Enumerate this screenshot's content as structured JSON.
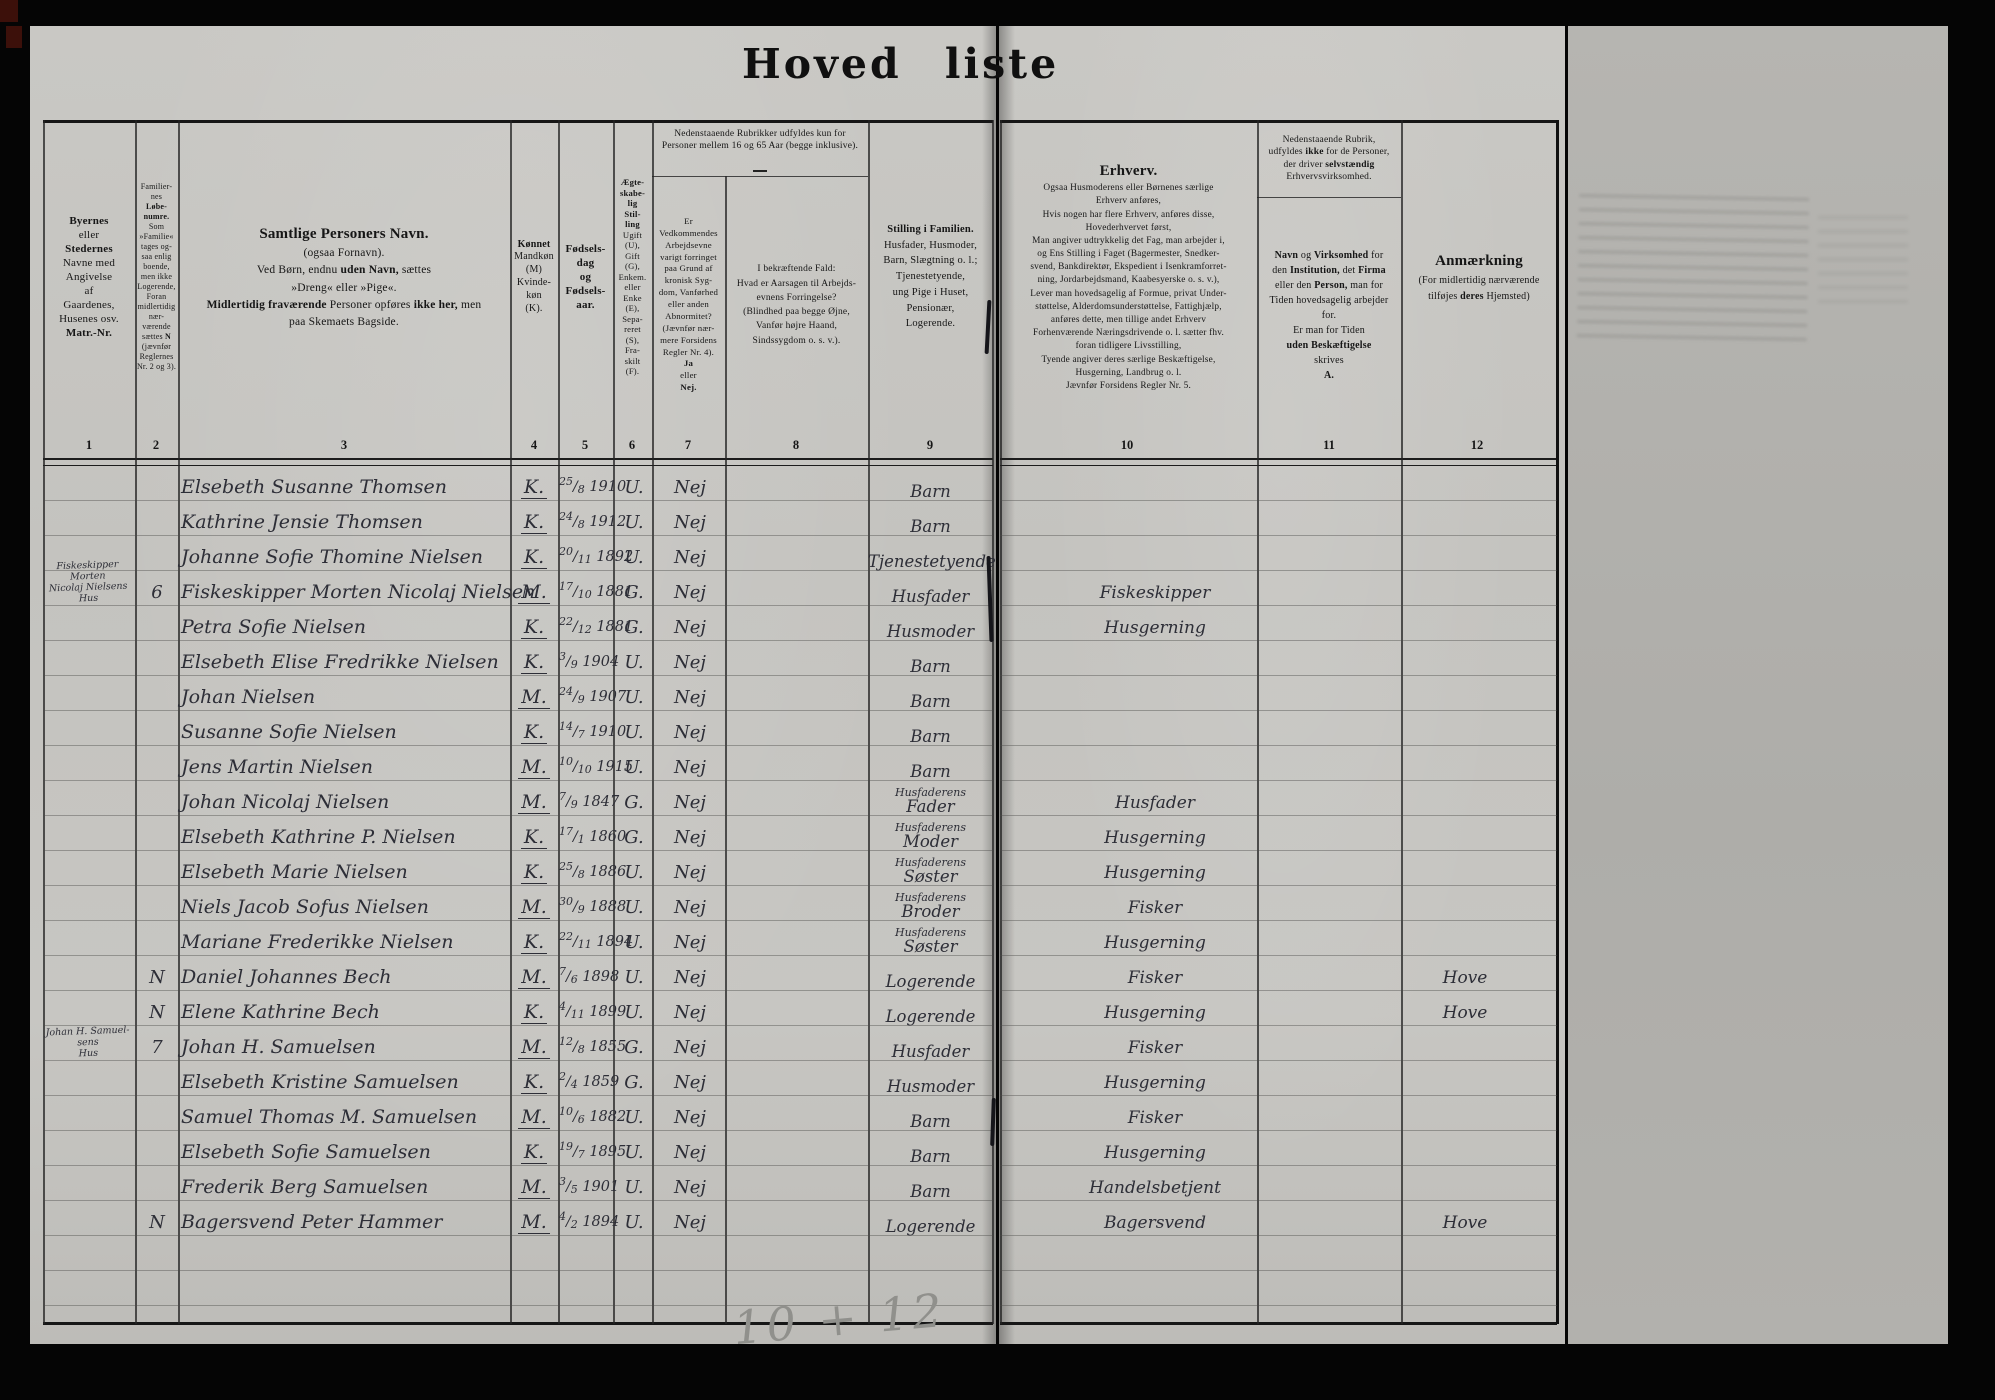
{
  "title": "Hoved liste",
  "pencil_note": "10 + 12",
  "column_numbers": [
    "1",
    "2",
    "3",
    "4",
    "5",
    "6",
    "7",
    "8",
    "9",
    "10",
    "11",
    "12"
  ],
  "headers": {
    "col1": [
      [
        [
          "Byernes",
          "b"
        ]
      ],
      [
        [
          "eller",
          ""
        ]
      ],
      [
        [
          "Stedernes",
          "b"
        ]
      ],
      [
        [
          "Navne med",
          ""
        ]
      ],
      [
        [
          "Angivelse",
          ""
        ]
      ],
      [
        [
          "af",
          ""
        ]
      ],
      [
        [
          "Gaardenes,",
          ""
        ]
      ],
      [
        [
          "Husenes osv.",
          ""
        ]
      ],
      [
        [
          "Matr.-Nr.",
          "b"
        ]
      ]
    ],
    "col2": [
      [
        [
          "Familier-",
          ""
        ]
      ],
      [
        [
          "nes",
          ""
        ]
      ],
      [
        [
          "Løbe-",
          "b"
        ]
      ],
      [
        [
          "numre.",
          "b"
        ]
      ],
      [
        [
          "Som",
          ""
        ]
      ],
      [
        [
          "»Familie«",
          ""
        ]
      ],
      [
        [
          "tages og-",
          ""
        ]
      ],
      [
        [
          "saa enlig",
          ""
        ]
      ],
      [
        [
          "boende,",
          ""
        ]
      ],
      [
        [
          "men ikke",
          ""
        ]
      ],
      [
        [
          "Logerende,",
          ""
        ]
      ],
      [
        [
          "Foran",
          ""
        ]
      ],
      [
        [
          "midlertidig",
          ""
        ]
      ],
      [
        [
          "nær-",
          ""
        ]
      ],
      [
        [
          "værende",
          ""
        ]
      ],
      [
        [
          "sættes ",
          ""
        ],
        [
          "N",
          "b"
        ]
      ],
      [
        [
          "(jævnfør",
          ""
        ]
      ],
      [
        [
          "Reglernes",
          ""
        ]
      ],
      [
        [
          "Nr. 2 og 3).",
          ""
        ]
      ]
    ],
    "col3": [
      [
        [
          "Samtlige Personers Navn.",
          "b t"
        ]
      ],
      [
        [
          "(ogsaa Fornavn).",
          ""
        ]
      ],
      [
        [
          "Ved Børn, endnu ",
          ""
        ],
        [
          "uden Navn,",
          "b"
        ],
        [
          " sættes",
          ""
        ]
      ],
      [
        [
          "»Dreng« eller »Pige«.",
          ""
        ]
      ],
      [
        [
          "Midlertidig fraværende",
          "b"
        ],
        [
          " Personer opføres ",
          ""
        ],
        [
          "ikke her,",
          "b"
        ],
        [
          " men",
          ""
        ]
      ],
      [
        [
          "paa Skemaets Bagside.",
          ""
        ]
      ]
    ],
    "col4": [
      [
        [
          "Kønnet",
          "b"
        ]
      ],
      [
        [
          "Mandkøn",
          ""
        ]
      ],
      [
        [
          "(M)",
          ""
        ]
      ],
      [
        [
          "Kvinde-",
          ""
        ]
      ],
      [
        [
          "køn",
          ""
        ]
      ],
      [
        [
          "(K).",
          ""
        ]
      ]
    ],
    "col5": [
      [
        [
          "Fødsels-",
          "b"
        ]
      ],
      [
        [
          "dag",
          "b"
        ]
      ],
      [
        [
          "og",
          "b"
        ]
      ],
      [
        [
          "Fødsels-",
          "b"
        ]
      ],
      [
        [
          "aar.",
          "b"
        ]
      ]
    ],
    "col6": [
      [
        [
          "Ægte-",
          "b"
        ]
      ],
      [
        [
          "skabe-",
          "b"
        ]
      ],
      [
        [
          "lig",
          "b"
        ]
      ],
      [
        [
          "Stil-",
          "b"
        ]
      ],
      [
        [
          "ling",
          "b"
        ]
      ],
      [
        [
          "Ugift",
          ""
        ]
      ],
      [
        [
          "(U),",
          ""
        ]
      ],
      [
        [
          "Gift",
          ""
        ]
      ],
      [
        [
          "(G),",
          ""
        ]
      ],
      [
        [
          "Enkem.",
          ""
        ]
      ],
      [
        [
          "eller",
          ""
        ]
      ],
      [
        [
          "Enke",
          ""
        ]
      ],
      [
        [
          "(E),",
          ""
        ]
      ],
      [
        [
          "Sepa-",
          ""
        ]
      ],
      [
        [
          "reret",
          ""
        ]
      ],
      [
        [
          "(S),",
          ""
        ]
      ],
      [
        [
          "Fra-",
          ""
        ]
      ],
      [
        [
          "skilt",
          ""
        ]
      ],
      [
        [
          "(F).",
          ""
        ]
      ]
    ],
    "col7span": [
      [
        [
          "Nedenstaaende Rubrikker udfyldes kun for",
          ""
        ]
      ],
      [
        [
          "Personer mellem 16 og 65 Aar (begge inklusive).",
          ""
        ]
      ]
    ],
    "col7": [
      [
        [
          "Er",
          ""
        ]
      ],
      [
        [
          "Vedkommendes",
          ""
        ]
      ],
      [
        [
          "Arbejdsevne",
          ""
        ]
      ],
      [
        [
          "varigt forringet",
          ""
        ]
      ],
      [
        [
          "paa Grund af",
          ""
        ]
      ],
      [
        [
          "kronisk Syg-",
          ""
        ]
      ],
      [
        [
          "dom, Vanførhed",
          ""
        ]
      ],
      [
        [
          "eller anden",
          ""
        ]
      ],
      [
        [
          "Abnormitet?",
          ""
        ]
      ],
      [
        [
          "(Jævnfør nær-",
          ""
        ]
      ],
      [
        [
          "mere Forsidens",
          ""
        ]
      ],
      [
        [
          "Regler Nr. 4).",
          ""
        ]
      ],
      [
        [
          "Ja",
          "b"
        ]
      ],
      [
        [
          "eller",
          ""
        ]
      ],
      [
        [
          "Nej.",
          "b"
        ]
      ]
    ],
    "col8": [
      [
        [
          "I bekræftende Fald:",
          ""
        ]
      ],
      [
        [
          "Hvad er Aarsagen til Arbejds-",
          ""
        ]
      ],
      [
        [
          "evnens Forringelse?",
          ""
        ]
      ],
      [
        [
          "(Blindhed paa begge Øjne,",
          ""
        ]
      ],
      [
        [
          "Vanfør højre Haand,",
          ""
        ]
      ],
      [
        [
          "Sindssygdom o. s. v.).",
          ""
        ]
      ]
    ],
    "col9": [
      [
        [
          "Stilling i Familien.",
          "b"
        ]
      ],
      [
        [
          "Husfader, Husmoder,",
          ""
        ]
      ],
      [
        [
          "Barn, Slægtning o. l.;",
          ""
        ]
      ],
      [
        [
          "Tjenestetyende,",
          ""
        ]
      ],
      [
        [
          "ung Pige i Huset,",
          ""
        ]
      ],
      [
        [
          "Pensionær,",
          ""
        ]
      ],
      [
        [
          "Logerende.",
          ""
        ]
      ]
    ],
    "col10": [
      [
        [
          "Erhverv.",
          "b t"
        ]
      ],
      [
        [
          "Ogsaa Husmoderens eller Børnenes særlige",
          ""
        ]
      ],
      [
        [
          "Erhverv anføres,",
          ""
        ]
      ],
      [
        [
          "Hvis nogen har flere Erhverv, anføres disse,",
          ""
        ]
      ],
      [
        [
          "Hovederhvervet først,",
          ""
        ]
      ],
      [
        [
          "Man angiver udtrykkelig det Fag, man arbejder i,",
          ""
        ]
      ],
      [
        [
          "og Ens Stilling i Faget (Bagermester, Snedker-",
          ""
        ]
      ],
      [
        [
          "svend, Bankdirektør, Ekspedient i Isenkramforret-",
          ""
        ]
      ],
      [
        [
          "ning, Jordarbejdsmand, Kaabesyerske o. s. v.),",
          ""
        ]
      ],
      [
        [
          "Lever man hovedsagelig af Formue, privat Under-",
          ""
        ]
      ],
      [
        [
          "støttelse, Alderdomsunderstøttelse, Fattighjælp,",
          ""
        ]
      ],
      [
        [
          "anføres dette, men tillige andet Erhverv",
          ""
        ]
      ],
      [
        [
          "Forhenværende Næringsdrivende o. l. sætter fhv.",
          ""
        ]
      ],
      [
        [
          "foran tidligere Livsstilling,",
          ""
        ]
      ],
      [
        [
          "Tyende angiver deres særlige Beskæftigelse,",
          ""
        ]
      ],
      [
        [
          "Husgerning, Landbrug o. l.",
          ""
        ]
      ],
      [
        [
          "Jævnfør Forsidens Regler Nr. 5.",
          ""
        ]
      ]
    ],
    "col11top": [
      [
        [
          "Nedenstaaende Rubrik,",
          ""
        ]
      ],
      [
        [
          "udfyldes ",
          ""
        ],
        [
          "ikke",
          "b"
        ],
        [
          " for de Personer,",
          ""
        ]
      ],
      [
        [
          "der driver ",
          ""
        ],
        [
          "selvstændig",
          "b"
        ]
      ],
      [
        [
          "Erhvervsvirksomhed.",
          ""
        ]
      ]
    ],
    "col11": [
      [
        [
          "Navn ",
          "b"
        ],
        [
          "og ",
          ""
        ],
        [
          "Virksomhed ",
          "b"
        ],
        [
          "for",
          ""
        ]
      ],
      [
        [
          "den ",
          ""
        ],
        [
          "Institution,",
          "b"
        ],
        [
          " det ",
          ""
        ],
        [
          "Firma",
          "b"
        ]
      ],
      [
        [
          "eller den ",
          ""
        ],
        [
          "Person,",
          "b"
        ],
        [
          " man for",
          ""
        ]
      ],
      [
        [
          "Tiden hovedsagelig arbejder",
          ""
        ]
      ],
      [
        [
          "for.",
          ""
        ]
      ],
      [
        [
          "Er man for Tiden",
          ""
        ]
      ],
      [
        [
          "uden Beskæftigelse",
          "b"
        ]
      ],
      [
        [
          "skrives",
          ""
        ]
      ],
      [
        [
          "A.",
          "b"
        ]
      ]
    ],
    "col12": [
      [
        [
          "Anmærkning",
          "b t"
        ]
      ],
      [
        [
          "(For midlertidig nærværende",
          ""
        ]
      ],
      [
        [
          "tilføjes ",
          ""
        ],
        [
          "deres",
          "b"
        ],
        [
          " Hjemsted)",
          ""
        ]
      ]
    ]
  },
  "rows": [
    {
      "name": "Elsebeth Susanne Thomsen",
      "sex": "K.",
      "d": "25",
      "m": "8",
      "y": "1910",
      "ms": "U.",
      "ab": "Nej",
      "fam": "Barn"
    },
    {
      "name": "Kathrine Jensie Thomsen",
      "sex": "K.",
      "d": "24",
      "m": "8",
      "y": "1912",
      "ms": "U.",
      "ab": "Nej",
      "fam": "Barn"
    },
    {
      "name": "Johanne Sofie Thomine Nielsen",
      "sex": "K.",
      "d": "20",
      "m": "11",
      "y": "1892",
      "ms": "U.",
      "ab": "Nej",
      "fam": "Tjenestetyende"
    },
    {
      "pl": "Fiskeskipper Morten\nNicolaj Nielsens\nHus",
      "nr": "6",
      "name": "Fiskeskipper Morten Nicolaj Nielsen",
      "sex": "M.",
      "d": "17",
      "m": "10",
      "y": "1881",
      "ms": "G.",
      "ab": "Nej",
      "fam": "Husfader",
      "erh": "Fiskeskipper"
    },
    {
      "name": "Petra Sofie Nielsen",
      "sex": "K.",
      "d": "22",
      "m": "12",
      "y": "1881",
      "ms": "G.",
      "ab": "Nej",
      "fam": "Husmoder",
      "erh": "Husgerning"
    },
    {
      "name": "Elsebeth Elise Fredrikke Nielsen",
      "sex": "K.",
      "d": "3",
      "m": "9",
      "y": "1904",
      "ms": "U.",
      "ab": "Nej",
      "fam": "Barn"
    },
    {
      "name": "Johan Nielsen",
      "sex": "M.",
      "d": "24",
      "m": "9",
      "y": "1907",
      "ms": "U.",
      "ab": "Nej",
      "fam": "Barn"
    },
    {
      "name": "Susanne Sofie Nielsen",
      "sex": "K.",
      "d": "14",
      "m": "7",
      "y": "1910",
      "ms": "U.",
      "ab": "Nej",
      "fam": "Barn"
    },
    {
      "name": "Jens Martin Nielsen",
      "sex": "M.",
      "d": "10",
      "m": "10",
      "y": "1915",
      "ms": "U.",
      "ab": "Nej",
      "fam": "Barn"
    },
    {
      "name": "Johan Nicolaj Nielsen",
      "sex": "M.",
      "d": "7",
      "m": "9",
      "y": "1847",
      "ms": "G.",
      "ab": "Nej",
      "fam1": "Husfaderens",
      "fam": "Fader",
      "erh": "Husfader"
    },
    {
      "name": "Elsebeth Kathrine P. Nielsen",
      "sex": "K.",
      "d": "17",
      "m": "1",
      "y": "1860",
      "ms": "G.",
      "ab": "Nej",
      "fam1": "Husfaderens",
      "fam": "Moder",
      "erh": "Husgerning"
    },
    {
      "name": "Elsebeth Marie Nielsen",
      "sex": "K.",
      "d": "25",
      "m": "8",
      "y": "1886",
      "ms": "U.",
      "ab": "Nej",
      "fam1": "Husfaderens",
      "fam": "Søster",
      "erh": "Husgerning"
    },
    {
      "name": "Niels Jacob Sofus Nielsen",
      "sex": "M.",
      "d": "30",
      "m": "9",
      "y": "1888",
      "ms": "U.",
      "ab": "Nej",
      "fam1": "Husfaderens",
      "fam": "Broder",
      "erh": "Fisker"
    },
    {
      "name": "Mariane Frederikke Nielsen",
      "sex": "K.",
      "d": "22",
      "m": "11",
      "y": "1894",
      "ms": "U.",
      "ab": "Nej",
      "fam1": "Husfaderens",
      "fam": "Søster",
      "erh": "Husgerning"
    },
    {
      "nr": "N",
      "name": "Daniel Johannes Bech",
      "sex": "M.",
      "d": "7",
      "m": "6",
      "y": "1898",
      "ms": "U.",
      "ab": "Nej",
      "fam": "Logerende",
      "erh": "Fisker",
      "anm": "Hove"
    },
    {
      "nr": "N",
      "name": "Elene Kathrine Bech",
      "sex": "K.",
      "d": "4",
      "m": "11",
      "y": "1899",
      "ms": "U.",
      "ab": "Nej",
      "fam": "Logerende",
      "erh": "Husgerning",
      "anm": "Hove"
    },
    {
      "pl": "Johan H. Samuel-\nsens\nHus",
      "nr": "7",
      "name": "Johan H. Samuelsen",
      "sex": "M.",
      "d": "12",
      "m": "8",
      "y": "1855",
      "ms": "G.",
      "ab": "Nej",
      "fam": "Husfader",
      "erh": "Fisker"
    },
    {
      "name": "Elsebeth Kristine Samuelsen",
      "sex": "K.",
      "d": "2",
      "m": "4",
      "y": "1859",
      "ms": "G.",
      "ab": "Nej",
      "fam": "Husmoder",
      "erh": "Husgerning"
    },
    {
      "name": "Samuel Thomas M. Samuelsen",
      "sex": "M.",
      "d": "10",
      "m": "6",
      "y": "1882",
      "ms": "U.",
      "ab": "Nej",
      "fam": "Barn",
      "erh": "Fisker"
    },
    {
      "name": "Elsebeth Sofie Samuelsen",
      "sex": "K.",
      "d": "19",
      "m": "7",
      "y": "1895",
      "ms": "U.",
      "ab": "Nej",
      "fam": "Barn",
      "erh": "Husgerning"
    },
    {
      "name": "Frederik Berg Samuelsen",
      "sex": "M.",
      "d": "3",
      "m": "5",
      "y": "1901",
      "ms": "U.",
      "ab": "Nej",
      "fam": "Barn",
      "erh": "Handelsbetjent"
    },
    {
      "nr": "N",
      "name": "Bagersvend Peter Hammer",
      "sex": "M.",
      "d": "4",
      "m": "2",
      "y": "1894",
      "ms": "U.",
      "ab": "Nej",
      "fam": "Logerende",
      "erh": "Bagersvend",
      "anm": "Hove"
    }
  ]
}
